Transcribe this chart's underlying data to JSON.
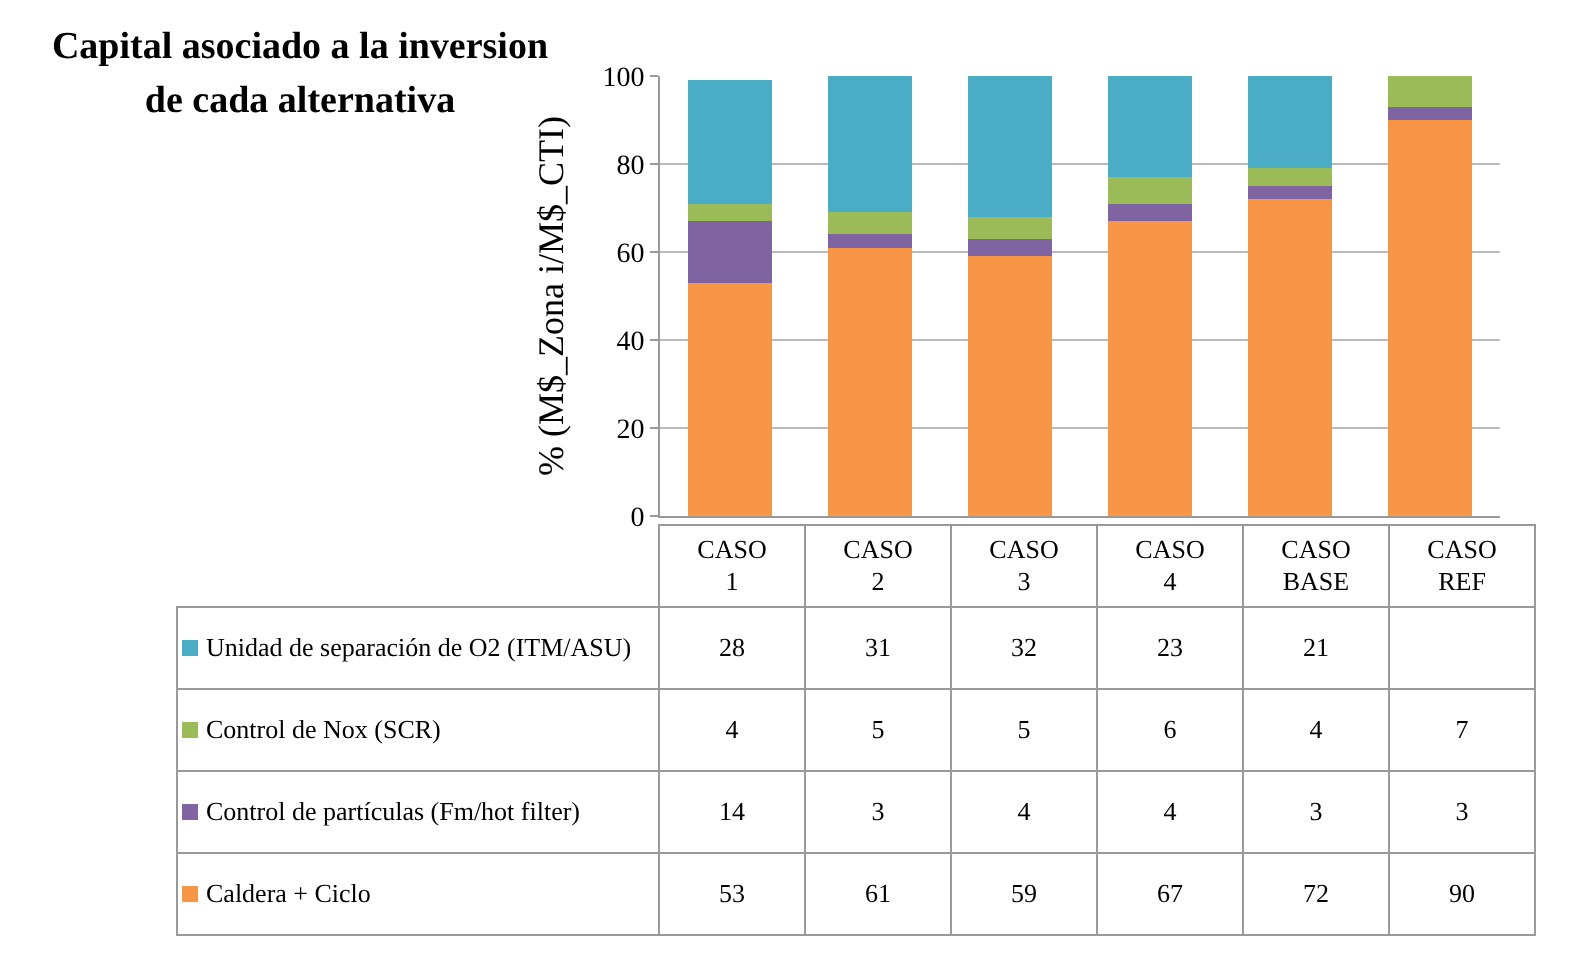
{
  "chart_data": {
    "type": "bar",
    "title": "Capital asociado a la inversion de cada alternativa",
    "ylabel": "% (M$_Zona i/M$_CTI)",
    "categories": [
      "CASO 1",
      "CASO 2",
      "CASO 3",
      "CASO 4",
      "CASO BASE",
      "CASO REF"
    ],
    "stacked": true,
    "series": [
      {
        "name": "Caldera + Ciclo",
        "color": "#f79646",
        "values": [
          53,
          61,
          59,
          67,
          72,
          90
        ]
      },
      {
        "name": "Control de partículas (Fm/hot filter)",
        "color": "#8064a2",
        "values": [
          14,
          3,
          4,
          4,
          3,
          3
        ]
      },
      {
        "name": "Control de Nox (SCR)",
        "color": "#9bbb59",
        "values": [
          4,
          5,
          5,
          6,
          4,
          7
        ]
      },
      {
        "name": "Unidad de separación de O2 (ITM/ASU)",
        "color": "#4bacc6",
        "values": [
          28,
          31,
          32,
          23,
          21,
          null
        ]
      }
    ],
    "ylim": [
      0,
      100
    ],
    "yticks": [
      0,
      20,
      40,
      60,
      80,
      100
    ],
    "grid": "y",
    "legend": "bottom",
    "data_labels": true
  }
}
